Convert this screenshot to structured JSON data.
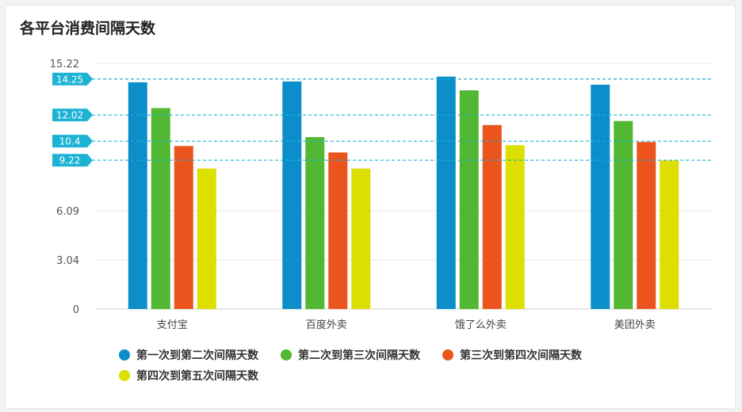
{
  "title": "各平台消费间隔天数",
  "colors": [
    "#0b8ec9",
    "#52b732",
    "#ec541d",
    "#dcdf00"
  ],
  "marker_color": "#1cb3d4",
  "chart_data": {
    "type": "bar",
    "categories": [
      "支付宝",
      "百度外卖",
      "饿了么外卖",
      "美团外卖"
    ],
    "series": [
      {
        "name": "第一次到第二次间隔天数",
        "values": [
          14.05,
          14.1,
          14.4,
          13.9
        ]
      },
      {
        "name": "第二次到第三次间隔天数",
        "values": [
          12.45,
          10.65,
          13.55,
          11.65
        ]
      },
      {
        "name": "第三次到第四次间隔天数",
        "values": [
          10.1,
          9.7,
          11.4,
          10.35
        ]
      },
      {
        "name": "第四次到第五次间隔天数",
        "values": [
          8.7,
          8.7,
          10.15,
          9.2
        ]
      }
    ],
    "yticks": [
      0,
      3.04,
      6.09,
      15.22
    ],
    "ylim": [
      0,
      15.22
    ],
    "reference_lines": [
      {
        "label": "14.25",
        "value": 14.25
      },
      {
        "label": "12.02",
        "value": 12.02
      },
      {
        "label": "10.4",
        "value": 10.4
      },
      {
        "label": "9.22",
        "value": 9.22
      }
    ],
    "grid": true,
    "legend_position": "bottom"
  }
}
